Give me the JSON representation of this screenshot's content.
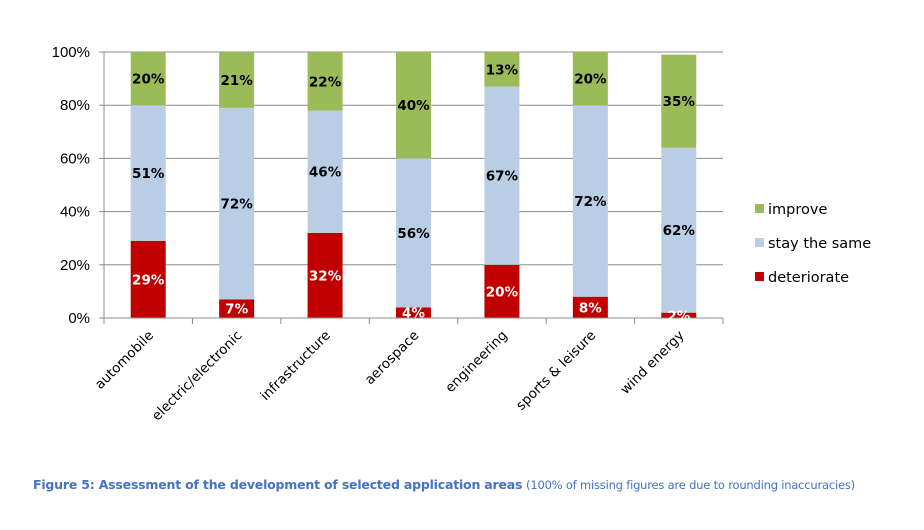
{
  "chart_data": {
    "type": "bar",
    "stacked": true,
    "percent_stacked": true,
    "title": "",
    "xlabel": "",
    "ylabel": "",
    "ylim": [
      0,
      100
    ],
    "yticks": [
      "0%",
      "20%",
      "40%",
      "60%",
      "80%",
      "100%"
    ],
    "ytick_values": [
      0,
      20,
      40,
      60,
      80,
      100
    ],
    "grid": true,
    "legend_position": "right",
    "categories": [
      "automobile",
      "electric/electronic",
      "infrastructure",
      "aerospace",
      "engineering",
      "sports & leisure",
      "wind energy"
    ],
    "series": [
      {
        "name": "deteriorate",
        "color": "#c00000",
        "label_color": "#ffffff",
        "values": [
          29,
          7,
          32,
          4,
          20,
          8,
          2
        ]
      },
      {
        "name": "stay the same",
        "color": "#b9cde5",
        "label_color": "#000000",
        "values": [
          51,
          72,
          46,
          56,
          67,
          72,
          62
        ]
      },
      {
        "name": "improve",
        "color": "#9bbb59",
        "label_color": "#000000",
        "values": [
          20,
          21,
          22,
          40,
          13,
          20,
          35
        ]
      }
    ],
    "legend_order": [
      "improve",
      "stay the same",
      "deteriorate"
    ]
  },
  "caption": {
    "bold": "Figure 5: Assessment of the development of selected application areas",
    "note": "(100% of missing figures are due to rounding inaccuracies)"
  }
}
